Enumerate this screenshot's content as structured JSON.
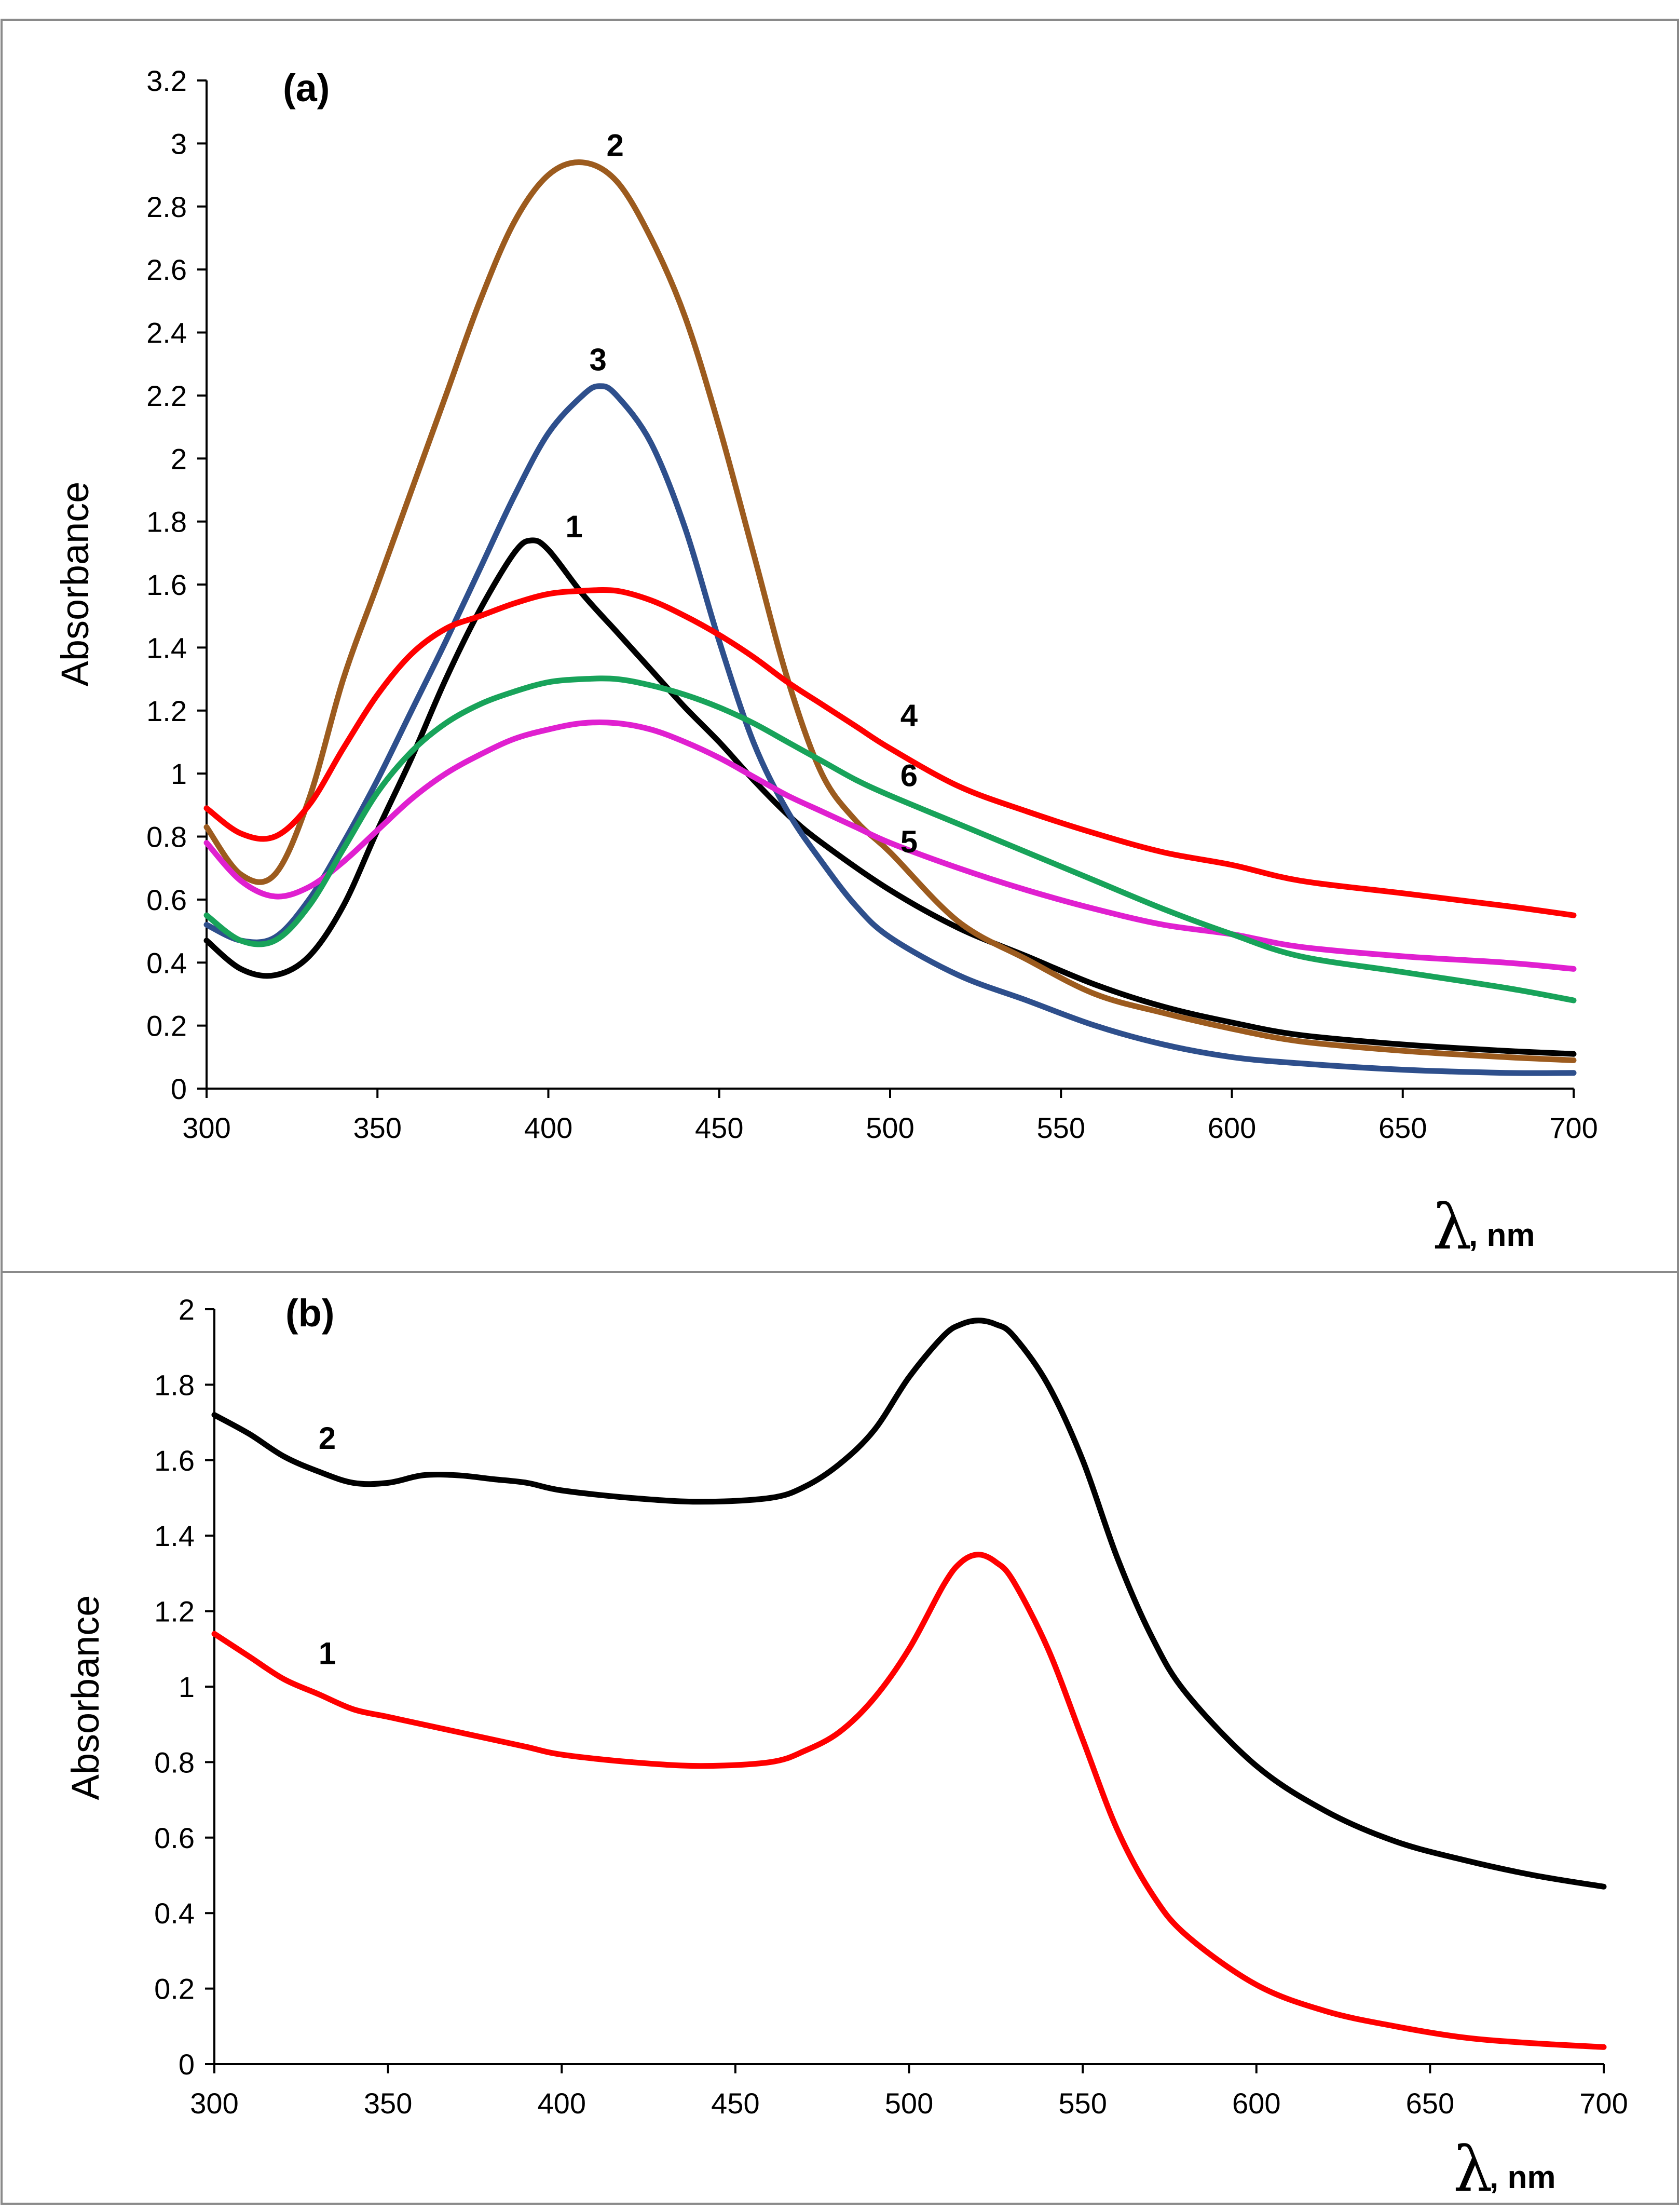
{
  "chart_data": [
    {
      "type": "line",
      "panel_label": "(a)",
      "ylabel": "Absorbance",
      "xlabel_symbol": "λ",
      "xlabel_unit": ", nm",
      "xlim": [
        300,
        700
      ],
      "ylim": [
        0,
        3.2
      ],
      "x_ticks": [
        "300",
        "350",
        "400",
        "450",
        "500",
        "550",
        "600",
        "650",
        "700"
      ],
      "y_ticks": [
        "0",
        "0.2",
        "0.4",
        "0.6",
        "0.8",
        "1",
        "1.2",
        "1.4",
        "1.6",
        "1.8",
        "2",
        "2.2",
        "2.4",
        "2.6",
        "2.8",
        "3",
        "3.2"
      ],
      "grid": false,
      "series": [
        {
          "name": "1",
          "color": "#000000",
          "x": [
            300,
            310,
            320,
            330,
            340,
            350,
            360,
            370,
            380,
            390,
            395,
            400,
            410,
            420,
            430,
            440,
            450,
            460,
            470,
            480,
            500,
            520,
            540,
            560,
            580,
            600,
            620,
            650,
            680,
            700
          ],
          "y": [
            0.47,
            0.38,
            0.36,
            0.42,
            0.58,
            0.82,
            1.05,
            1.3,
            1.52,
            1.7,
            1.74,
            1.71,
            1.57,
            1.45,
            1.33,
            1.21,
            1.1,
            0.98,
            0.87,
            0.78,
            0.63,
            0.51,
            0.42,
            0.33,
            0.26,
            0.21,
            0.17,
            0.14,
            0.12,
            0.11
          ],
          "label_at": [
            405,
            1.75
          ]
        },
        {
          "name": "2",
          "color": "#9C5B1E",
          "x": [
            300,
            310,
            320,
            330,
            340,
            350,
            360,
            370,
            380,
            390,
            400,
            410,
            420,
            430,
            440,
            450,
            460,
            470,
            480,
            490,
            500,
            520,
            540,
            560,
            580,
            600,
            620,
            650,
            680,
            700
          ],
          "y": [
            0.83,
            0.68,
            0.68,
            0.92,
            1.3,
            1.6,
            1.9,
            2.2,
            2.5,
            2.75,
            2.9,
            2.94,
            2.88,
            2.7,
            2.45,
            2.1,
            1.7,
            1.3,
            1.0,
            0.85,
            0.75,
            0.53,
            0.41,
            0.3,
            0.24,
            0.19,
            0.15,
            0.12,
            0.1,
            0.09
          ],
          "label_at": [
            417,
            2.96
          ]
        },
        {
          "name": "3",
          "color": "#2E4F8C",
          "x": [
            300,
            310,
            320,
            330,
            340,
            350,
            360,
            370,
            380,
            390,
            400,
            410,
            415,
            420,
            430,
            440,
            450,
            460,
            470,
            480,
            490,
            500,
            520,
            540,
            560,
            580,
            600,
            620,
            650,
            680,
            700
          ],
          "y": [
            0.52,
            0.47,
            0.48,
            0.6,
            0.78,
            0.98,
            1.2,
            1.42,
            1.65,
            1.88,
            2.08,
            2.2,
            2.23,
            2.2,
            2.05,
            1.78,
            1.42,
            1.1,
            0.88,
            0.72,
            0.58,
            0.48,
            0.36,
            0.28,
            0.2,
            0.14,
            0.1,
            0.08,
            0.06,
            0.05,
            0.05
          ],
          "label_at": [
            412,
            2.28
          ]
        },
        {
          "name": "4",
          "color": "#FF0000",
          "x": [
            300,
            310,
            320,
            330,
            340,
            350,
            360,
            370,
            380,
            390,
            400,
            410,
            420,
            430,
            440,
            450,
            460,
            470,
            480,
            490,
            500,
            520,
            540,
            560,
            580,
            600,
            620,
            650,
            680,
            700
          ],
          "y": [
            0.89,
            0.81,
            0.8,
            0.9,
            1.08,
            1.25,
            1.38,
            1.46,
            1.5,
            1.54,
            1.57,
            1.58,
            1.58,
            1.55,
            1.5,
            1.44,
            1.37,
            1.29,
            1.22,
            1.15,
            1.08,
            0.96,
            0.88,
            0.81,
            0.75,
            0.71,
            0.66,
            0.62,
            0.58,
            0.55
          ],
          "label_at": [
            503,
            1.15
          ]
        },
        {
          "name": "5",
          "color": "#E020D0",
          "x": [
            300,
            310,
            320,
            330,
            340,
            350,
            360,
            370,
            380,
            390,
            400,
            410,
            420,
            430,
            440,
            450,
            460,
            470,
            480,
            490,
            500,
            520,
            540,
            560,
            580,
            600,
            620,
            650,
            680,
            700
          ],
          "y": [
            0.78,
            0.66,
            0.61,
            0.64,
            0.72,
            0.82,
            0.92,
            1.0,
            1.06,
            1.11,
            1.14,
            1.16,
            1.16,
            1.14,
            1.1,
            1.05,
            0.99,
            0.93,
            0.88,
            0.83,
            0.78,
            0.7,
            0.63,
            0.57,
            0.52,
            0.49,
            0.45,
            0.42,
            0.4,
            0.38
          ],
          "label_at": [
            503,
            0.75
          ]
        },
        {
          "name": "6",
          "color": "#18A35A",
          "x": [
            300,
            310,
            320,
            330,
            340,
            350,
            360,
            370,
            380,
            390,
            400,
            410,
            420,
            430,
            440,
            450,
            460,
            470,
            480,
            490,
            500,
            520,
            540,
            560,
            580,
            600,
            620,
            650,
            680,
            700
          ],
          "y": [
            0.55,
            0.47,
            0.47,
            0.58,
            0.76,
            0.94,
            1.07,
            1.16,
            1.22,
            1.26,
            1.29,
            1.3,
            1.3,
            1.28,
            1.25,
            1.21,
            1.16,
            1.1,
            1.04,
            0.98,
            0.93,
            0.84,
            0.75,
            0.66,
            0.57,
            0.49,
            0.42,
            0.37,
            0.32,
            0.28
          ],
          "label_at": [
            503,
            0.96
          ]
        }
      ]
    },
    {
      "type": "line",
      "panel_label": "(b)",
      "ylabel": "Absorbance",
      "xlabel_symbol": "λ",
      "xlabel_unit": ", nm",
      "xlim": [
        300,
        700
      ],
      "ylim": [
        0,
        2
      ],
      "x_ticks": [
        "300",
        "350",
        "400",
        "450",
        "500",
        "550",
        "600",
        "650",
        "700"
      ],
      "y_ticks": [
        "0",
        "0.2",
        "0.4",
        "0.6",
        "0.8",
        "1",
        "1.2",
        "1.4",
        "1.6",
        "1.8",
        "2"
      ],
      "grid": false,
      "series": [
        {
          "name": "1",
          "color": "#FF0000",
          "x": [
            300,
            310,
            320,
            330,
            340,
            350,
            360,
            370,
            380,
            390,
            400,
            420,
            440,
            460,
            470,
            480,
            490,
            500,
            510,
            515,
            520,
            525,
            530,
            540,
            550,
            560,
            570,
            580,
            600,
            620,
            640,
            660,
            680,
            700
          ],
          "y": [
            1.14,
            1.08,
            1.02,
            0.98,
            0.94,
            0.92,
            0.9,
            0.88,
            0.86,
            0.84,
            0.82,
            0.8,
            0.79,
            0.8,
            0.83,
            0.88,
            0.97,
            1.1,
            1.27,
            1.33,
            1.35,
            1.33,
            1.28,
            1.1,
            0.86,
            0.62,
            0.45,
            0.34,
            0.21,
            0.14,
            0.1,
            0.07,
            0.055,
            0.045
          ],
          "label_at": [
            330,
            1.06
          ]
        },
        {
          "name": "2",
          "color": "#000000",
          "x": [
            300,
            310,
            320,
            330,
            340,
            350,
            360,
            370,
            380,
            390,
            400,
            420,
            440,
            460,
            470,
            480,
            490,
            500,
            510,
            515,
            520,
            525,
            530,
            540,
            550,
            560,
            570,
            580,
            600,
            620,
            640,
            660,
            680,
            700
          ],
          "y": [
            1.72,
            1.67,
            1.61,
            1.57,
            1.54,
            1.54,
            1.56,
            1.56,
            1.55,
            1.54,
            1.52,
            1.5,
            1.49,
            1.5,
            1.53,
            1.59,
            1.68,
            1.82,
            1.93,
            1.96,
            1.97,
            1.96,
            1.93,
            1.8,
            1.6,
            1.34,
            1.13,
            0.98,
            0.79,
            0.67,
            0.59,
            0.54,
            0.5,
            0.47
          ],
          "label_at": [
            330,
            1.63
          ]
        }
      ]
    }
  ]
}
